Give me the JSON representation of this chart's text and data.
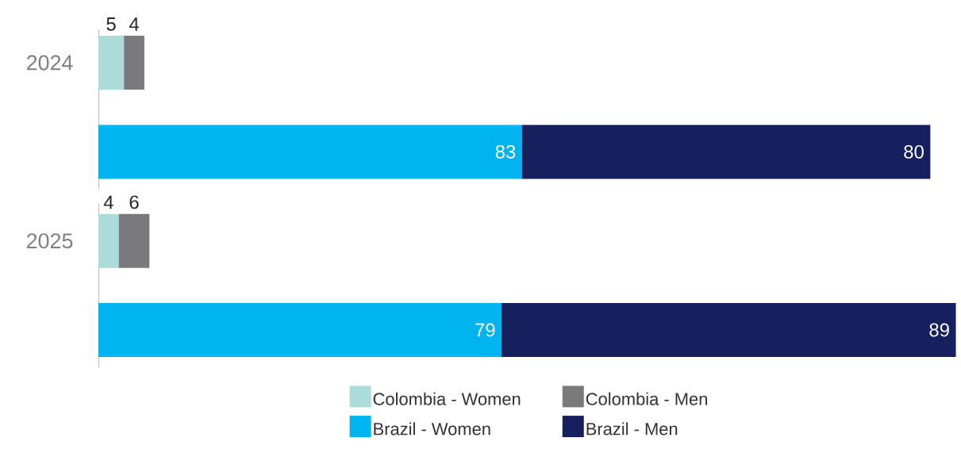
{
  "chart_data": {
    "type": "bar",
    "orientation": "horizontal",
    "stacked": true,
    "data_labels": true,
    "legend": "bottom",
    "categories": [
      "2024",
      null,
      "2025",
      null
    ],
    "series": [
      {
        "name": "Colombia - Women",
        "color": "#acdcd9",
        "values": [
          5,
          null,
          4,
          null
        ]
      },
      {
        "name": "Colombia - Men",
        "color": "#7a7a7c",
        "values": [
          4,
          null,
          6,
          null
        ]
      },
      {
        "name": "Brazil - Women",
        "color": "#00b5ef",
        "values": [
          null,
          83,
          null,
          79
        ]
      },
      {
        "name": "Brazil - Men",
        "color": "#16205e",
        "values": [
          null,
          80,
          null,
          89
        ]
      }
    ]
  }
}
